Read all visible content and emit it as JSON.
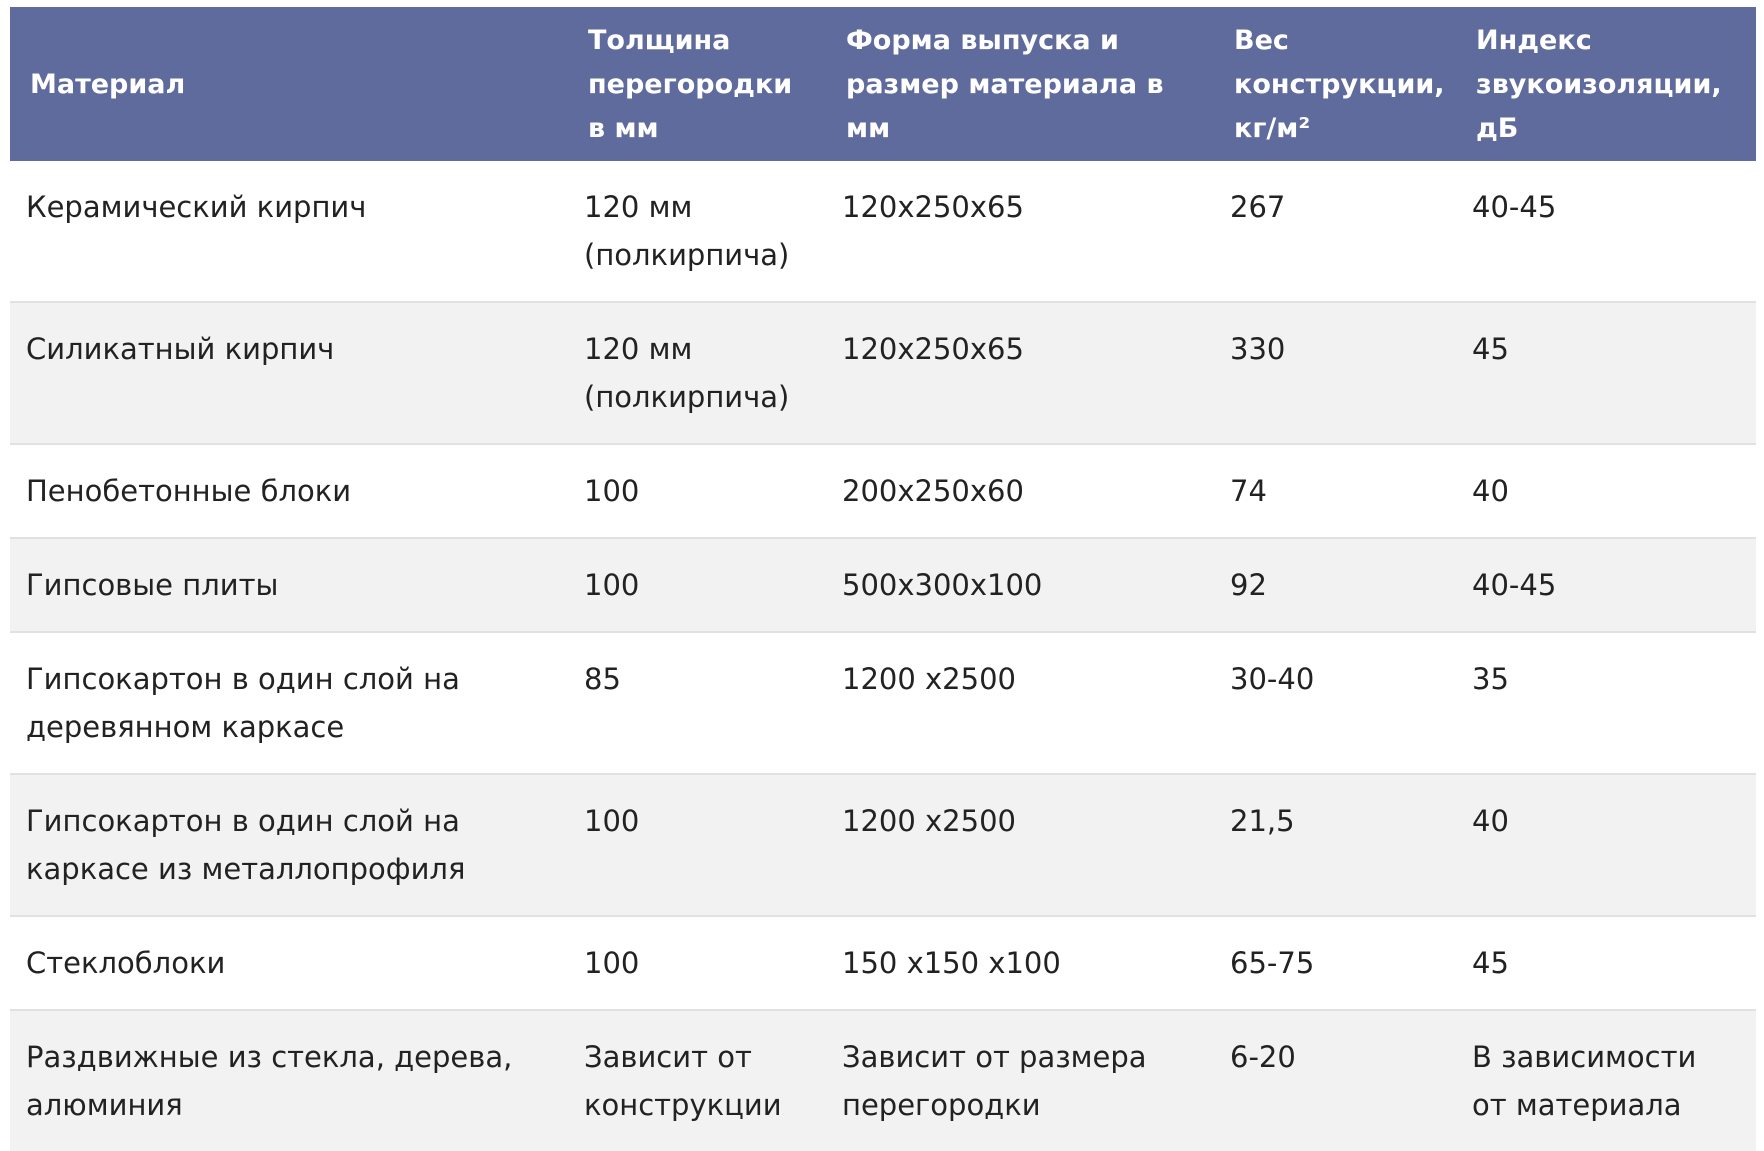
{
  "table": {
    "headers": [
      "Материал",
      "Толщина перегородки в мм",
      "Форма выпуска и размер материала в мм",
      "Вес конструкции, кг/м²",
      "Индекс звукоизоляции, дБ"
    ],
    "rows": [
      [
        "Керамический кирпич",
        "120 мм (полкирпича)",
        "120х250х65",
        "267",
        "40-45"
      ],
      [
        "Силикатный кирпич",
        "120 мм (полкирпича)",
        "120х250х65",
        "330",
        "45"
      ],
      [
        "Пенобетонные блоки",
        "100",
        "200х250х60",
        "74",
        "40"
      ],
      [
        "Гипсовые плиты",
        "100",
        "500х300х100",
        "92",
        "40-45"
      ],
      [
        "Гипсокартон в один слой на деревянном каркасе",
        "85",
        "1200 х2500",
        "30-40",
        "35"
      ],
      [
        "Гипсокартон в один слой на каркасе из металлопрофиля",
        "100",
        "1200 х2500",
        "21,5",
        "40"
      ],
      [
        "Стеклоблоки",
        "100",
        "150 х150 х100",
        "65-75",
        "45"
      ],
      [
        "Раздвижные из стекла, дерева, алюминия",
        "Зависит от конструкции",
        "Зависит от размера перегородки",
        "6-20",
        "В зависимости от материала"
      ]
    ]
  },
  "colors": {
    "header_bg": "#5f6a9d",
    "header_text": "#ffffff",
    "row_alt_bg": "#f2f2f2",
    "row_bg": "#ffffff"
  }
}
